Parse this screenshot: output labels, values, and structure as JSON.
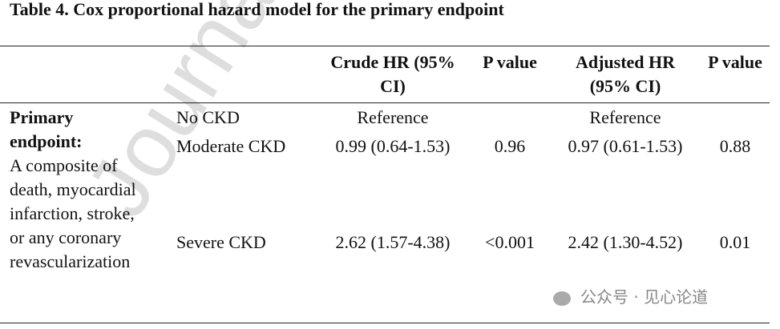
{
  "title": "Table 4. Cox proportional hazard model for the primary endpoint",
  "table": {
    "header": [
      "Crude HR (95% CI)",
      "P value",
      "Adjusted HR (95% CI)",
      "P value"
    ],
    "group": {
      "label": "Primary endpoint:",
      "description": "A composite of death, myocardial infarction, stroke, or any coronary revascularization"
    },
    "rows": [
      [
        "No CKD",
        "Reference",
        "",
        "Reference",
        ""
      ],
      [
        "Moderate CKD",
        "0.99 (0.64-1.53)",
        "0.96",
        "0.97 (0.61-1.53)",
        "0.88"
      ],
      [
        "Severe CKD",
        "2.62 (1.57-4.38)",
        "<0.001",
        "2.42 (1.30-4.52)",
        "0.01"
      ]
    ]
  },
  "watermarks": {
    "journal": "Journal P",
    "wechat": "公众号 · 见心论道"
  }
}
